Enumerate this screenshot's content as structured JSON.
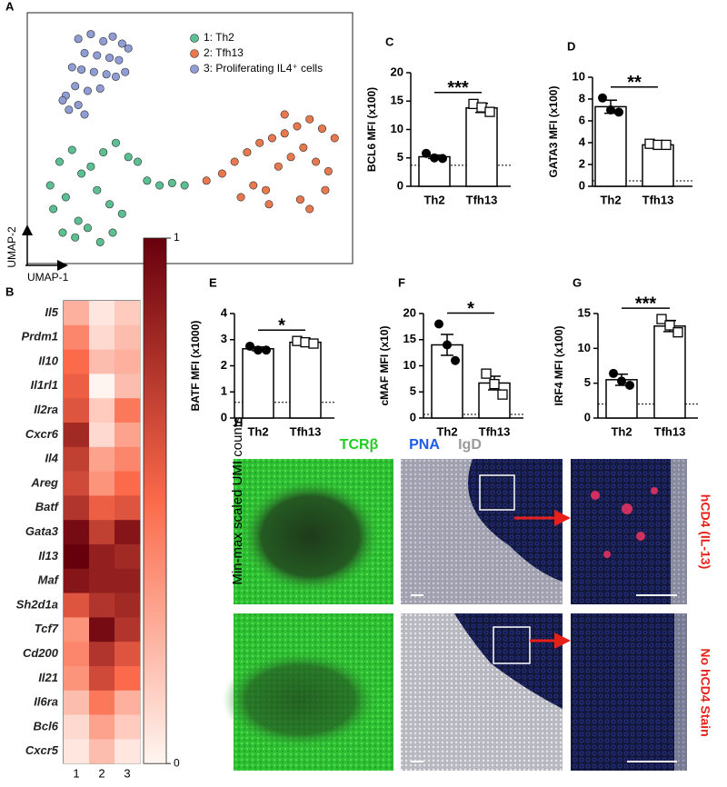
{
  "chart_data": [
    {
      "type": "scatter",
      "panel": "A",
      "xlabel": "UMAP-1",
      "ylabel": "UMAP-2",
      "xlim": [
        0,
        100
      ],
      "ylim": [
        0,
        100
      ],
      "series": [
        {
          "name": "1: Th2",
          "color": "#5cbf91",
          "x": [
            5,
            8,
            12,
            15,
            18,
            22,
            26,
            30,
            6,
            10,
            14,
            20,
            24,
            28,
            33,
            9,
            13,
            17,
            21,
            25,
            36,
            40,
            44,
            48
          ],
          "y": [
            30,
            40,
            45,
            35,
            38,
            44,
            48,
            42,
            20,
            25,
            15,
            28,
            22,
            18,
            40,
            10,
            8,
            12,
            6,
            10,
            32,
            30,
            31,
            30
          ]
        },
        {
          "name": "2: Tfh13",
          "color": "#e8794f",
          "x": [
            60,
            64,
            68,
            72,
            76,
            80,
            84,
            88,
            92,
            96,
            70,
            74,
            78,
            82,
            86,
            90,
            94,
            66,
            75,
            85,
            93,
            88,
            80,
            55
          ],
          "y": [
            35,
            40,
            44,
            48,
            50,
            52,
            55,
            58,
            54,
            50,
            30,
            28,
            38,
            42,
            46,
            40,
            36,
            25,
            22,
            24,
            28,
            20,
            60,
            32
          ]
        },
        {
          "name": "3: Proliferating IL4⁺ cells",
          "color": "#8f9dd4",
          "x": [
            14,
            18,
            22,
            25,
            28,
            30,
            16,
            20,
            24,
            27,
            12,
            15,
            19,
            23,
            26,
            29,
            13,
            17,
            21,
            10,
            9,
            11,
            14,
            16
          ],
          "y": [
            92,
            94,
            91,
            93,
            90,
            88,
            86,
            85,
            84,
            83,
            80,
            79,
            78,
            77,
            76,
            78,
            72,
            70,
            71,
            68,
            66,
            62,
            64,
            60
          ]
        }
      ]
    },
    {
      "type": "heatmap",
      "panel": "B",
      "colorbar_label": "Min-max scaled UMI counts",
      "rows": [
        "Il5",
        "Prdm1",
        "Il10",
        "Il1rl1",
        "Il2ra",
        "Cxcr6",
        "Il4",
        "Areg",
        "Batf",
        "Gata3",
        "Il13",
        "Maf",
        "Sh2d1a",
        "Tcf7",
        "Cd200",
        "Il21",
        "Il6ra",
        "Bcl6",
        "Cxcr5"
      ],
      "columns": [
        "1",
        "2",
        "3"
      ],
      "values": [
        [
          0.25,
          0.05,
          0.15
        ],
        [
          0.4,
          0.1,
          0.2
        ],
        [
          0.5,
          0.2,
          0.25
        ],
        [
          0.55,
          0.0,
          0.2
        ],
        [
          0.6,
          0.15,
          0.45
        ],
        [
          0.8,
          0.1,
          0.3
        ],
        [
          0.7,
          0.3,
          0.4
        ],
        [
          0.65,
          0.35,
          0.5
        ],
        [
          0.75,
          0.55,
          0.6
        ],
        [
          0.95,
          0.7,
          0.9
        ],
        [
          1.0,
          0.85,
          0.8
        ],
        [
          0.9,
          0.85,
          0.85
        ],
        [
          0.6,
          0.75,
          0.8
        ],
        [
          0.35,
          0.95,
          0.75
        ],
        [
          0.4,
          0.75,
          0.6
        ],
        [
          0.35,
          0.65,
          0.5
        ],
        [
          0.2,
          0.45,
          0.25
        ],
        [
          0.1,
          0.3,
          0.15
        ],
        [
          0.05,
          0.2,
          0.05
        ]
      ],
      "zlim": [
        0,
        1
      ],
      "zticks": [
        0,
        1
      ],
      "colors": [
        "#fff5f0",
        "#fb6a4a",
        "#67000d"
      ]
    },
    {
      "type": "bar",
      "panel": "C",
      "ylabel": "BCL6 MFI (x100)",
      "categories": [
        "Th2",
        "Tfh13"
      ],
      "values": [
        5.2,
        13.8
      ],
      "errors": [
        0.3,
        0.8
      ],
      "points": [
        [
          5.8,
          5.0,
          4.9
        ],
        [
          14.5,
          13.9,
          13.1
        ]
      ],
      "threshold": 3.7,
      "significance": "***",
      "ylim": [
        0,
        20
      ],
      "yticks": [
        0,
        5,
        10,
        15,
        20
      ]
    },
    {
      "type": "bar",
      "panel": "D",
      "ylabel": "GATA3 MFI (x100)",
      "categories": [
        "Th2",
        "Tfh13"
      ],
      "values": [
        7.3,
        3.8
      ],
      "errors": [
        0.6,
        0.1
      ],
      "points": [
        [
          8.1,
          7.0,
          6.8
        ],
        [
          3.9,
          3.8,
          3.8
        ]
      ],
      "threshold": 0.5,
      "significance": "**",
      "ylim": [
        0,
        10
      ],
      "yticks": [
        0,
        2,
        4,
        6,
        8,
        10
      ]
    },
    {
      "type": "bar",
      "panel": "E",
      "ylabel": "BATF MFI (x1000)",
      "categories": [
        "Th2",
        "Tfh13"
      ],
      "values": [
        2.65,
        2.9
      ],
      "errors": [
        0.07,
        0.05
      ],
      "points": [
        [
          2.75,
          2.6,
          2.6
        ],
        [
          2.95,
          2.9,
          2.85
        ]
      ],
      "threshold": 0.6,
      "significance": "*",
      "ylim": [
        0,
        4
      ],
      "yticks": [
        0,
        1,
        2,
        3,
        4
      ]
    },
    {
      "type": "bar",
      "panel": "F",
      "ylabel": "cMAF MFI (x10)",
      "categories": [
        "Th2",
        "Tfh13"
      ],
      "values": [
        14.0,
        6.7
      ],
      "errors": [
        2.0,
        1.3
      ],
      "points": [
        [
          18,
          14,
          11
        ],
        [
          8.5,
          6.5,
          4.5
        ]
      ],
      "threshold": 0.7,
      "significance": "*",
      "ylim": [
        0,
        20
      ],
      "yticks": [
        0,
        5,
        10,
        15,
        20
      ]
    },
    {
      "type": "bar",
      "panel": "G",
      "ylabel": "IRF4 MFI (x100)",
      "categories": [
        "Th2",
        "Tfh13"
      ],
      "values": [
        5.5,
        13.2
      ],
      "errors": [
        0.8,
        0.8
      ],
      "points": [
        [
          6.4,
          5.3,
          4.7
        ],
        [
          14.2,
          13.3,
          12.3
        ]
      ],
      "threshold": 2,
      "significance": "***",
      "ylim": [
        0,
        15
      ],
      "yticks": [
        0,
        5,
        10,
        15
      ]
    }
  ],
  "panel_h": {
    "panel": "H",
    "stains": [
      {
        "label": "TCRβ",
        "color": "#22cc22"
      },
      {
        "label": "PNA",
        "color": "#1e5be6"
      },
      {
        "label": "IgD",
        "color": "#9a9a9a"
      }
    ],
    "rows": [
      "hCD4 (IL-13)",
      "No hCD4 Stain"
    ]
  }
}
